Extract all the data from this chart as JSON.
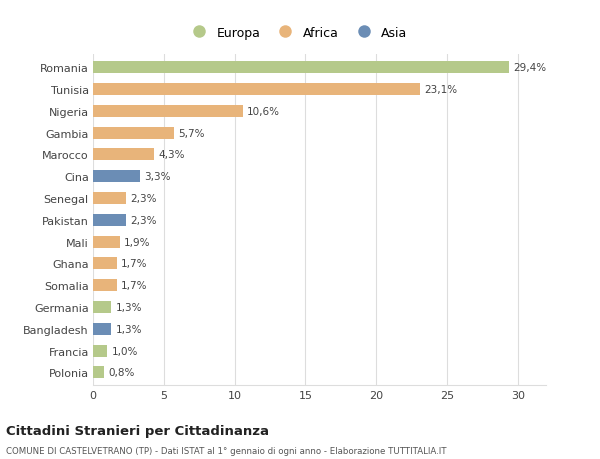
{
  "countries": [
    "Romania",
    "Tunisia",
    "Nigeria",
    "Gambia",
    "Marocco",
    "Cina",
    "Senegal",
    "Pakistan",
    "Mali",
    "Ghana",
    "Somalia",
    "Germania",
    "Bangladesh",
    "Francia",
    "Polonia"
  ],
  "values": [
    29.4,
    23.1,
    10.6,
    5.7,
    4.3,
    3.3,
    2.3,
    2.3,
    1.9,
    1.7,
    1.7,
    1.3,
    1.3,
    1.0,
    0.8
  ],
  "labels": [
    "29,4%",
    "23,1%",
    "10,6%",
    "5,7%",
    "4,3%",
    "3,3%",
    "2,3%",
    "2,3%",
    "1,9%",
    "1,7%",
    "1,7%",
    "1,3%",
    "1,3%",
    "1,0%",
    "0,8%"
  ],
  "continents": [
    "Europa",
    "Africa",
    "Africa",
    "Africa",
    "Africa",
    "Asia",
    "Africa",
    "Asia",
    "Africa",
    "Africa",
    "Africa",
    "Europa",
    "Asia",
    "Europa",
    "Europa"
  ],
  "colors": {
    "Europa": "#b5c98a",
    "Africa": "#e8b47a",
    "Asia": "#6b8db5"
  },
  "title": "Cittadini Stranieri per Cittadinanza",
  "subtitle": "COMUNE DI CASTELVETRANO (TP) - Dati ISTAT al 1° gennaio di ogni anno - Elaborazione TUTTITALIA.IT",
  "xlim": [
    0,
    32
  ],
  "xticks": [
    0,
    5,
    10,
    15,
    20,
    25,
    30
  ],
  "bg_color": "#ffffff",
  "grid_color": "#dddddd",
  "bar_height": 0.55
}
